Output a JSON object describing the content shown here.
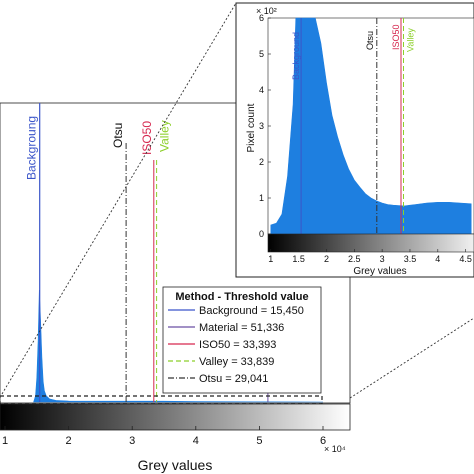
{
  "chart_data": [
    {
      "type": "area",
      "panel": "main",
      "xlabel": "Grey values",
      "x_exponent_label": "× 10⁴",
      "x_ticks": [
        1,
        2,
        3,
        4,
        5,
        6
      ],
      "xlim": [
        1,
        6.5
      ],
      "series": [
        {
          "x": [
            1.45,
            1.48,
            1.5,
            1.52,
            1.54,
            1.56,
            1.58,
            1.6,
            1.62,
            1.65,
            1.7,
            1.8,
            2.0,
            2.5,
            3.0,
            3.5,
            4.0,
            5.0,
            6.0
          ],
          "y": [
            0,
            0.3,
            1.2,
            3.0,
            5.5,
            4.0,
            2.2,
            1.0,
            0.55,
            0.3,
            0.15,
            0.08,
            0.05,
            0.04,
            0.04,
            0.04,
            0.02,
            0.01,
            0
          ]
        }
      ],
      "thresholds": [
        {
          "name": "Background",
          "x": 1.545,
          "color": "#3b55c9",
          "style": "solid"
        },
        {
          "name": "Material",
          "x": 5.1336,
          "color": "#6a4fa3",
          "style": "solid"
        },
        {
          "name": "ISO50",
          "x": 3.3393,
          "color": "#d6284f",
          "style": "solid"
        },
        {
          "name": "Valley",
          "x": 3.3839,
          "color": "#8ccf2a",
          "style": "dashed"
        },
        {
          "name": "Otsu",
          "x": 2.9041,
          "color": "#333333",
          "style": "dashdot"
        }
      ],
      "legend": {
        "title": "Method - Threshold value",
        "entries": [
          {
            "label": "Background = 15,450",
            "color": "#3b55c9",
            "style": "solid"
          },
          {
            "label": "Material = 51,336",
            "color": "#6a4fa3",
            "style": "solid"
          },
          {
            "label": "ISO50 = 33,393",
            "color": "#d6284f",
            "style": "solid"
          },
          {
            "label": "Valley = 33,839",
            "color": "#8ccf2a",
            "style": "dashed"
          },
          {
            "label": "Otsu = 29,041",
            "color": "#333333",
            "style": "dashdot"
          }
        ]
      },
      "labels": {
        "background": "Backgroung",
        "otsu": "Otsu",
        "iso50": "ISO50",
        "valley": "Valley"
      }
    },
    {
      "type": "area",
      "panel": "inset",
      "xlabel": "Grey values",
      "ylabel": "Pixel count",
      "y_exponent_label": "× 10²",
      "x_ticks": [
        1,
        1.5,
        2,
        2.5,
        3,
        3.5,
        4,
        4.5
      ],
      "y_ticks": [
        0,
        1,
        2,
        3,
        4,
        5,
        6
      ],
      "xlim": [
        0.95,
        4.65
      ],
      "ylim": [
        0,
        6
      ],
      "series": [
        {
          "x": [
            1.0,
            1.1,
            1.2,
            1.3,
            1.4,
            1.45,
            1.5,
            1.55,
            1.6,
            1.7,
            1.8,
            1.9,
            2.0,
            2.1,
            2.2,
            2.3,
            2.4,
            2.5,
            2.6,
            2.7,
            2.8,
            2.9,
            3.0,
            3.1,
            3.2,
            3.3,
            3.4,
            3.5,
            3.6,
            3.8,
            4.0,
            4.2,
            4.4,
            4.6
          ],
          "y": [
            0.25,
            0.3,
            0.55,
            1.6,
            3.6,
            6.0,
            6.0,
            6.0,
            6.0,
            6.0,
            6.0,
            5.3,
            4.2,
            3.3,
            2.7,
            2.2,
            1.8,
            1.5,
            1.3,
            1.12,
            1.0,
            0.92,
            0.86,
            0.82,
            0.8,
            0.79,
            0.78,
            0.8,
            0.82,
            0.86,
            0.88,
            0.88,
            0.86,
            0.84
          ]
        }
      ],
      "thresholds": [
        {
          "name": "Background",
          "x": 1.545,
          "color": "#3b55c9",
          "style": "solid"
        },
        {
          "name": "Otsu",
          "x": 2.9041,
          "color": "#333333",
          "style": "dashdot"
        },
        {
          "name": "ISO50",
          "x": 3.3393,
          "color": "#d6284f",
          "style": "solid"
        },
        {
          "name": "Valley",
          "x": 3.3839,
          "color": "#8ccf2a",
          "style": "dashed"
        }
      ],
      "labels": {
        "background": "Background",
        "otsu": "Otsu",
        "iso50": "ISO50",
        "valley": "Valley"
      }
    }
  ],
  "colors": {
    "histogram": "#1e7fe0",
    "background": "#3b55c9",
    "material": "#6a4fa3",
    "iso50": "#d6284f",
    "valley": "#8ccf2a",
    "otsu": "#333333"
  }
}
